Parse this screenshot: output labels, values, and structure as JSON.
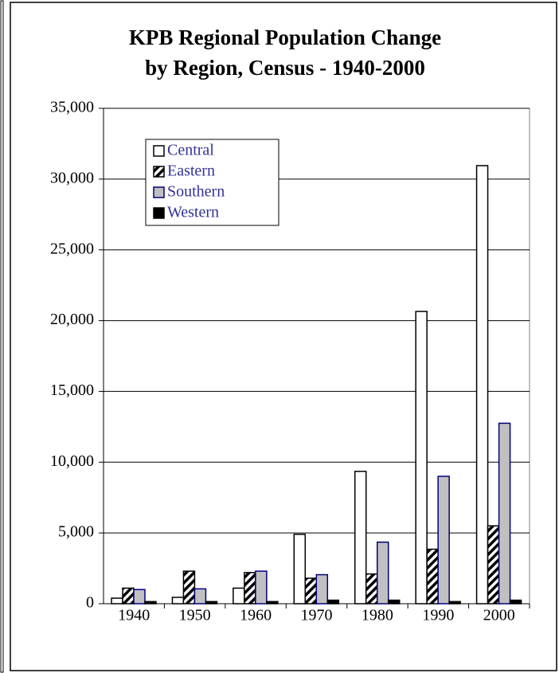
{
  "chart_data": {
    "type": "bar",
    "title": [
      "KPB Regional Population Change",
      "by Region, Census - 1940-2000"
    ],
    "categories": [
      "1940",
      "1950",
      "1960",
      "1970",
      "1980",
      "1990",
      "2000"
    ],
    "series": [
      {
        "name": "Central",
        "color": "#ffffff",
        "stroke": "#000000",
        "values": [
          390,
          450,
          1100,
          4900,
          9350,
          20650,
          30950
        ]
      },
      {
        "name": "Eastern",
        "color": "#ffffff",
        "stroke": "#000000",
        "hatch": true,
        "values": [
          1100,
          2300,
          2200,
          1800,
          2100,
          3850,
          5500
        ]
      },
      {
        "name": "Southern",
        "color": "#c0c0c0",
        "stroke": "#000080",
        "values": [
          1000,
          1050,
          2300,
          2050,
          4350,
          9000,
          12750
        ]
      },
      {
        "name": "Western",
        "color": "#000000",
        "stroke": "#000000",
        "values": [
          150,
          150,
          150,
          250,
          250,
          150,
          250
        ]
      }
    ],
    "ylim": [
      0,
      35000
    ],
    "yticks": [
      0,
      {
        "value": 5000,
        "label": "5,000"
      },
      {
        "value": 10000,
        "label": "10,000"
      },
      {
        "value": 15000,
        "label": "15,000"
      },
      {
        "value": 20000,
        "label": "20,000"
      },
      {
        "value": 25000,
        "label": "25,000"
      },
      {
        "value": 30000,
        "label": "30,000"
      },
      {
        "value": 35000,
        "label": "35,000"
      }
    ],
    "grid": true,
    "legend": "top-left"
  }
}
